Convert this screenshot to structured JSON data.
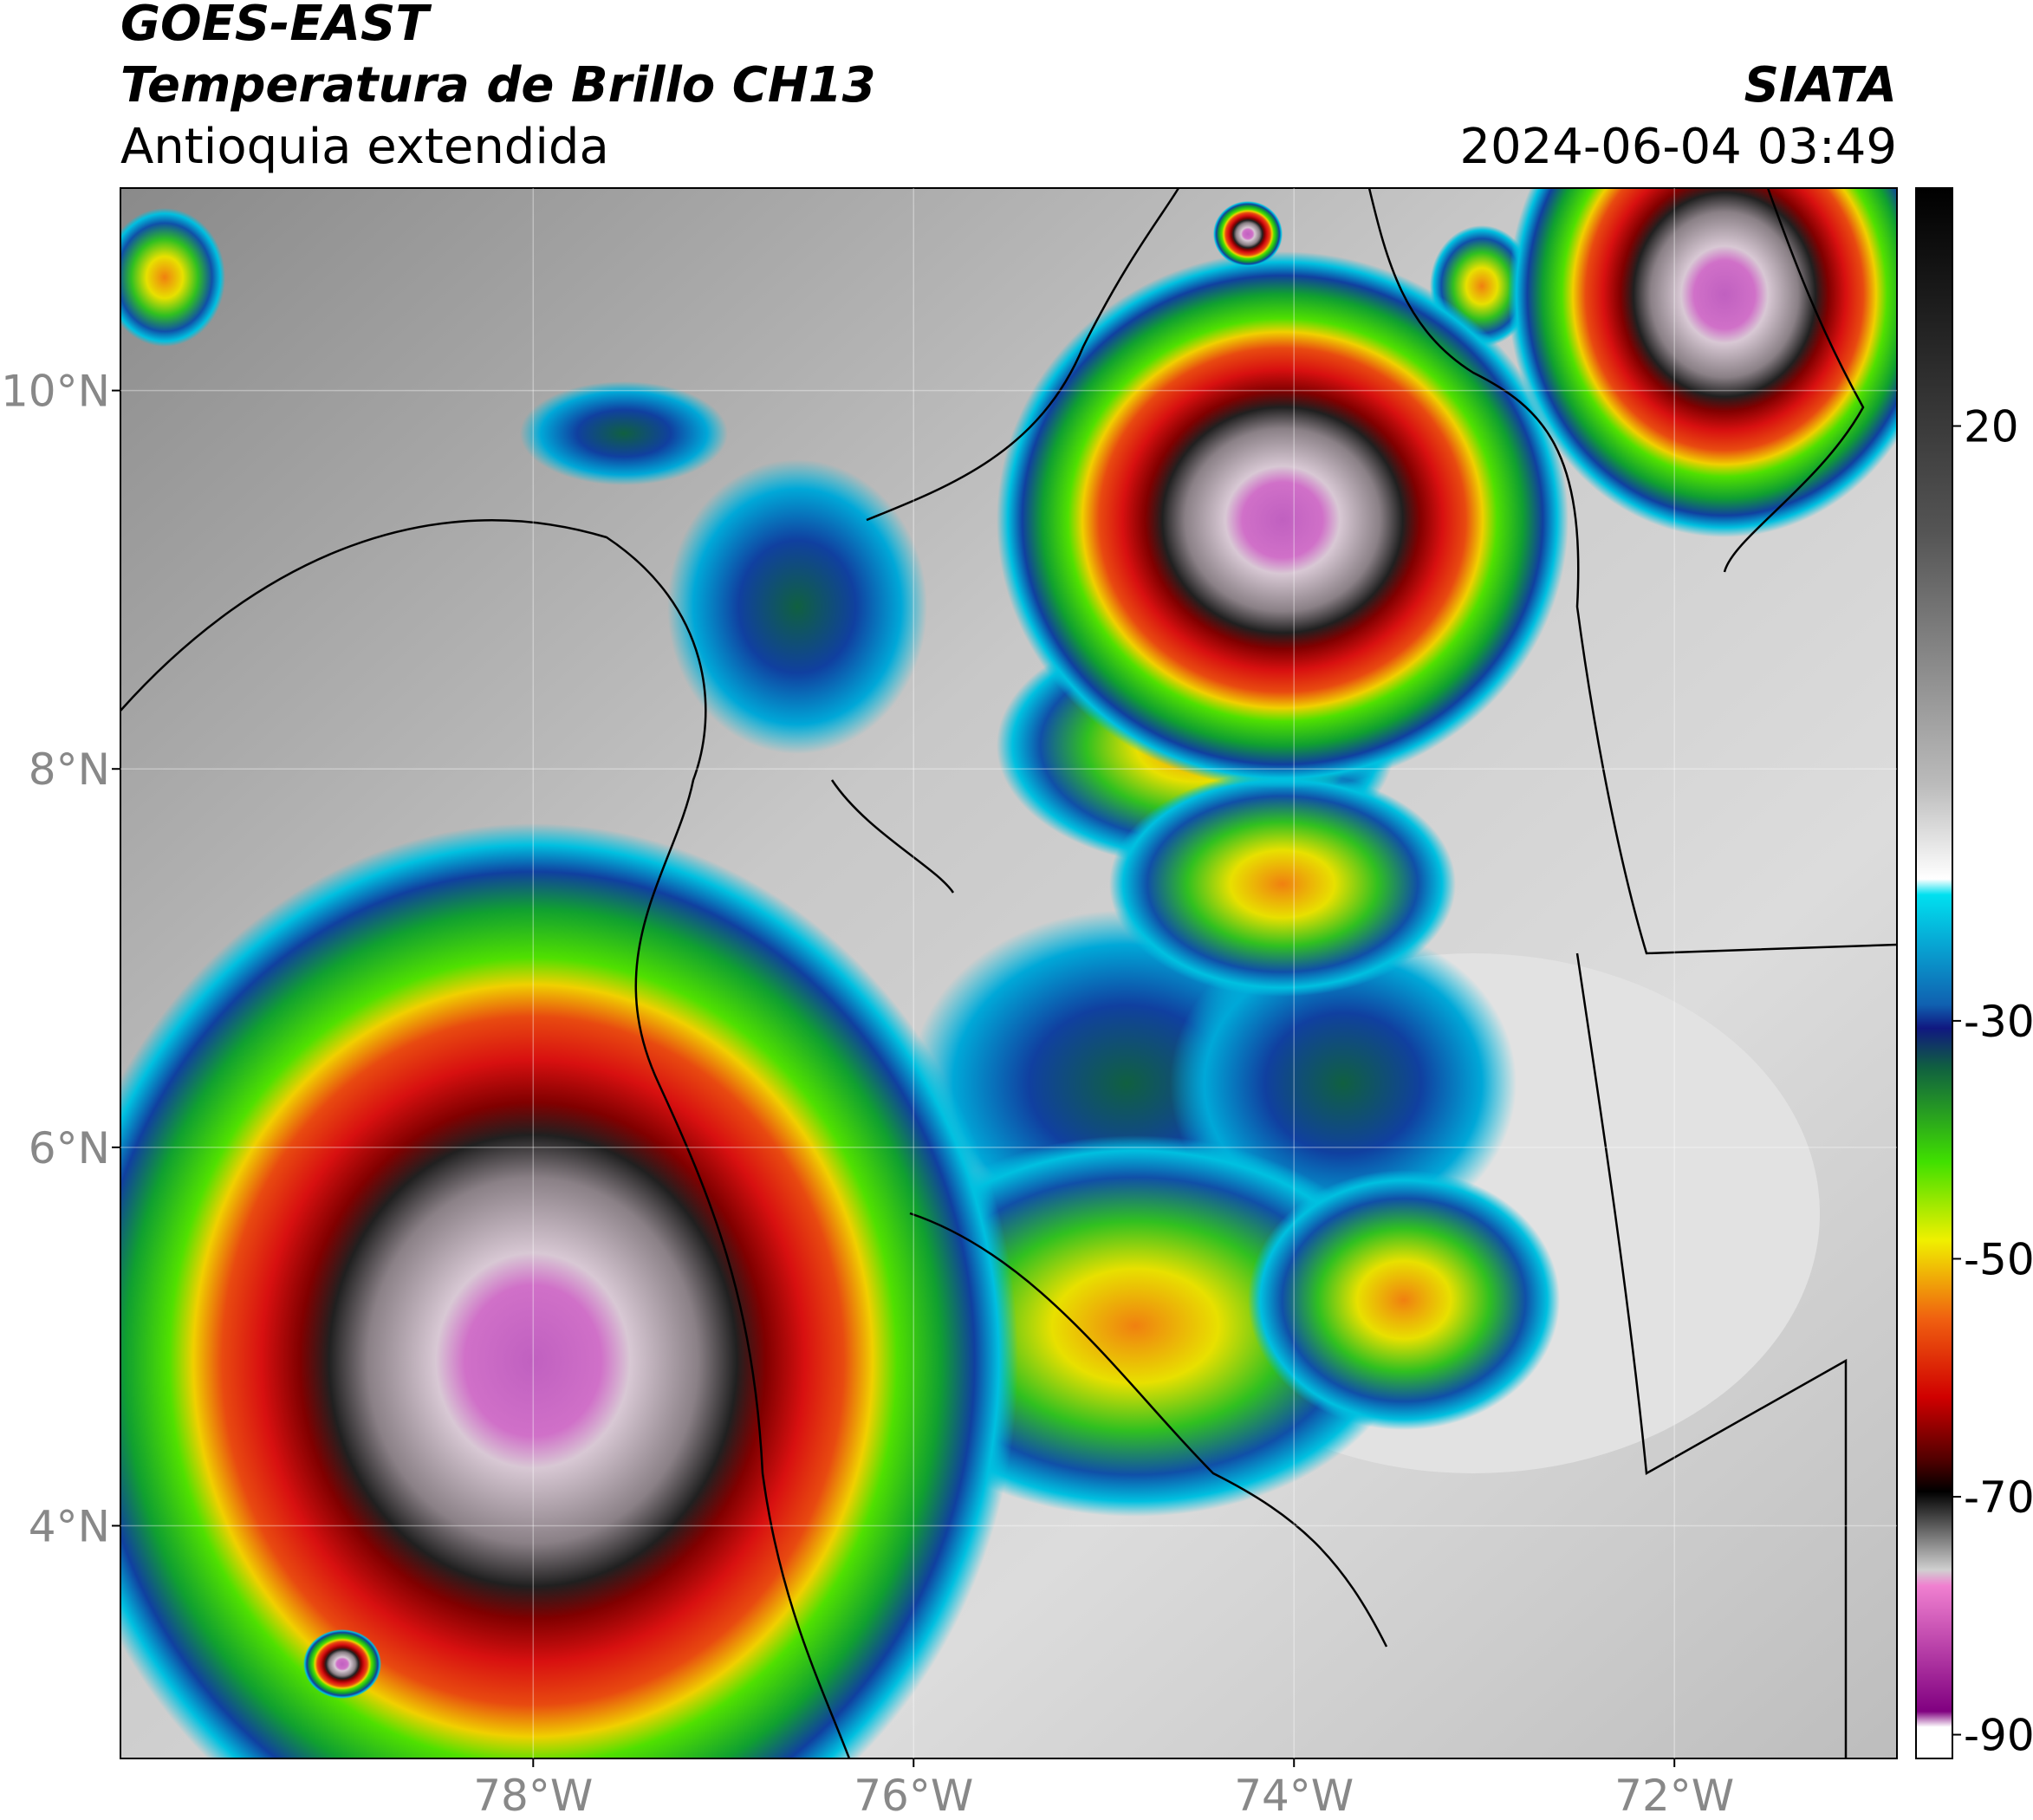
{
  "header": {
    "satellite": "GOES-EAST",
    "product": "Temperatura de Brillo CH13",
    "region": "Antioquia extendida",
    "agency": "SIATA",
    "datetime": "2024-06-04 03:49"
  },
  "map": {
    "xlim": [
      -80.17,
      -70.83
    ],
    "ylim": [
      2.77,
      11.07
    ],
    "xticks": [
      {
        "value": -78,
        "label": "78°W"
      },
      {
        "value": -76,
        "label": "76°W"
      },
      {
        "value": -74,
        "label": "74°W"
      },
      {
        "value": -72,
        "label": "72°W"
      }
    ],
    "yticks": [
      {
        "value": 10,
        "label": "10°N"
      },
      {
        "value": 8,
        "label": "8°N"
      },
      {
        "value": 6,
        "label": "6°N"
      },
      {
        "value": 4,
        "label": "4°N"
      }
    ],
    "grid": true
  },
  "colorbar": {
    "lim": [
      -92,
      40
    ],
    "ticks": [
      20,
      -30,
      -50,
      -70,
      -90
    ]
  }
}
